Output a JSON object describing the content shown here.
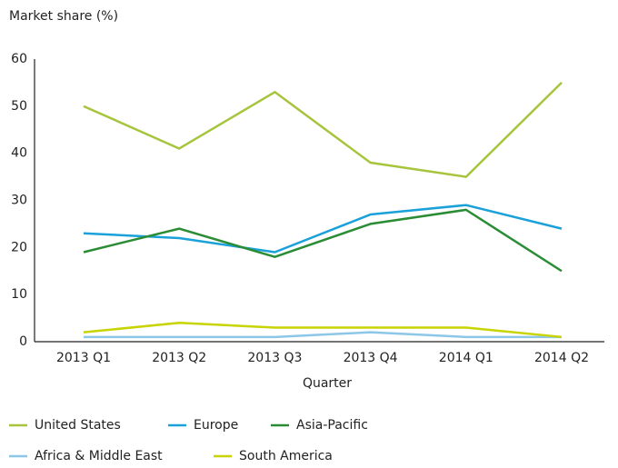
{
  "chart_data": {
    "type": "line",
    "y_label": "Market share (%)",
    "x_label": "Quarter",
    "categories": [
      "2013 Q1",
      "2013 Q2",
      "2013 Q3",
      "2013 Q4",
      "2014 Q1",
      "2014 Q2"
    ],
    "series": [
      {
        "name": "United States",
        "color": "#a6c43c",
        "values": [
          50,
          41,
          53,
          38,
          35,
          55
        ]
      },
      {
        "name": "Europe",
        "color": "#1ba1d9",
        "values": [
          23,
          22,
          19,
          27,
          29,
          24
        ]
      },
      {
        "name": "Asia-Pacific",
        "color": "#2a8c35",
        "values": [
          19,
          24,
          18,
          25,
          28,
          15
        ]
      },
      {
        "name": "Africa & Middle East",
        "color": "#8cc7e8",
        "values": [
          1,
          1,
          1,
          2,
          1,
          1
        ]
      },
      {
        "name": "South America",
        "color": "#c8d400",
        "values": [
          2,
          4,
          3,
          3,
          3,
          1
        ]
      }
    ],
    "ylim": [
      0,
      60
    ],
    "yticks": [
      0,
      10,
      20,
      30,
      40,
      50,
      60
    ],
    "grid": false,
    "legend": "bottom"
  }
}
